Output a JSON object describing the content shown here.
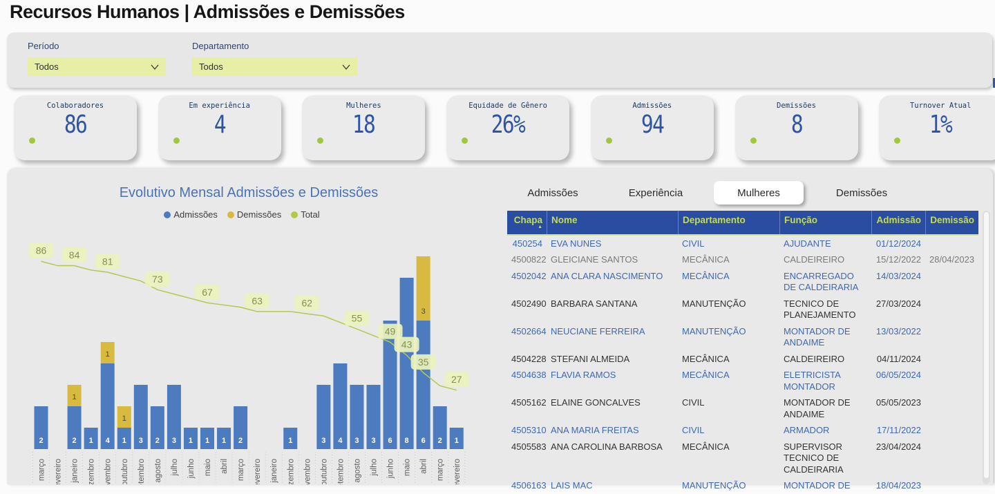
{
  "page": {
    "title": "Recursos Humanos | Admissões e Demissões"
  },
  "filters": {
    "period": {
      "label": "Período",
      "value": "Todos"
    },
    "department": {
      "label": "Departamento",
      "value": "Todos"
    }
  },
  "kpi_cards": [
    {
      "label": "Colaboradores",
      "value": "86"
    },
    {
      "label": "Em experiência",
      "value": "4"
    },
    {
      "label": "Mulheres",
      "value": "18"
    },
    {
      "label": "Equidade de Gênero",
      "value": "26%"
    },
    {
      "label": "Admissões",
      "value": "94"
    },
    {
      "label": "Demissões",
      "value": "8"
    },
    {
      "label": "Turnover Atual",
      "value": "1%"
    }
  ],
  "chart_data": {
    "type": "bar",
    "subtype": "stacked-column-with-line-dual-axis",
    "title": "Evolutivo Mensal Admissões e Demissões",
    "legend": [
      "Admissões",
      "Demissões",
      "Total"
    ],
    "legend_position": "top-center",
    "categories": [
      "março",
      "fevereiro",
      "janeiro",
      "dezembro",
      "novembro",
      "outubro",
      "setembro",
      "agosto",
      "julho",
      "junho",
      "maio",
      "abril",
      "março",
      "fevereiro",
      "janeiro",
      "dezembro",
      "novembro",
      "outubro",
      "setembro",
      "agosto",
      "julho",
      "junho",
      "maio",
      "abril",
      "março",
      "fevereiro"
    ],
    "series": [
      {
        "name": "Admissões",
        "type": "bar-stack-bottom",
        "values": [
          2,
          0,
          2,
          1,
          4,
          1,
          3,
          2,
          3,
          1,
          1,
          1,
          2,
          0,
          0,
          1,
          0,
          3,
          4,
          3,
          3,
          6,
          8,
          6,
          2,
          1
        ]
      },
      {
        "name": "Demissões",
        "type": "bar-stack-top",
        "values": [
          0,
          0,
          1,
          0,
          1,
          1,
          0,
          0,
          0,
          0,
          0,
          0,
          0,
          0,
          0,
          0,
          0,
          0,
          0,
          0,
          0,
          0,
          0,
          3,
          0,
          0
        ]
      },
      {
        "name": "Total",
        "type": "line",
        "values": [
          86,
          84,
          84,
          82,
          81,
          79,
          77,
          73,
          71,
          69,
          67,
          66,
          65,
          63,
          63,
          63,
          62,
          61,
          58,
          55,
          52,
          49,
          43,
          35,
          29,
          27
        ]
      }
    ],
    "total_line_labels": {
      "0": "86",
      "2": "84",
      "4": "81",
      "7": "73",
      "10": "67",
      "13": "63",
      "16": "62",
      "19": "55",
      "21": "49",
      "22": "43",
      "23": "35",
      "25": "27"
    },
    "bar_axis_implied_max": 9,
    "line_axis_implied_max": 90,
    "grid": "off"
  },
  "tabs": [
    {
      "label": "Admissões",
      "active": false
    },
    {
      "label": "Experiência",
      "active": false
    },
    {
      "label": "Mulheres",
      "active": true
    },
    {
      "label": "Demissões",
      "active": false
    }
  ],
  "table": {
    "columns": [
      "Chapa",
      "Nome",
      "Departamento",
      "Função",
      "Admissão",
      "Demissão"
    ],
    "sorted_column": "Chapa",
    "sort_direction": "asc",
    "rows": [
      {
        "chapa": "450254",
        "nome": "EVA NUNES",
        "departamento": "CIVIL",
        "funcao": "AJUDANTE",
        "admissao": "01/12/2024",
        "demissao": "",
        "style": "blue"
      },
      {
        "chapa": "4500822",
        "nome": "GLEICIANE SANTOS",
        "departamento": "MECÂNICA",
        "funcao": "CALDEIREIRO",
        "admissao": "15/12/2022",
        "demissao": "28/04/2023",
        "style": "gray"
      },
      {
        "chapa": "4502042",
        "nome": "ANA CLARA NASCIMENTO",
        "departamento": "MECÂNICA",
        "funcao": "ENCARREGADO DE CALDEIRARIA",
        "admissao": "14/03/2024",
        "demissao": "",
        "style": "blue"
      },
      {
        "chapa": "4502490",
        "nome": "BARBARA SANTANA",
        "departamento": "MANUTENÇÃO",
        "funcao": "TECNICO DE PLANEJAMENTO",
        "admissao": "27/03/2024",
        "demissao": "",
        "style": "dark"
      },
      {
        "chapa": "4502664",
        "nome": "NEUCIANE FERREIRA",
        "departamento": "MANUTENÇÃO",
        "funcao": "MONTADOR DE ANDAIME",
        "admissao": "13/03/2022",
        "demissao": "",
        "style": "blue"
      },
      {
        "chapa": "4504228",
        "nome": "STEFANI ALMEIDA",
        "departamento": "MECÂNICA",
        "funcao": "CALDEIREIRO",
        "admissao": "04/11/2024",
        "demissao": "",
        "style": "dark"
      },
      {
        "chapa": "4504638",
        "nome": "FLAVIA RAMOS",
        "departamento": "MECÂNICA",
        "funcao": "ELETRICISTA MONTADOR",
        "admissao": "06/05/2024",
        "demissao": "",
        "style": "blue"
      },
      {
        "chapa": "4505162",
        "nome": "ELAINE GONCALVES",
        "departamento": "CIVIL",
        "funcao": "MONTADOR DE ANDAIME",
        "admissao": "05/05/2023",
        "demissao": "",
        "style": "dark"
      },
      {
        "chapa": "4505310",
        "nome": "ANA MARIA FREITAS",
        "departamento": "CIVIL",
        "funcao": "ARMADOR",
        "admissao": "17/11/2022",
        "demissao": "",
        "style": "blue"
      },
      {
        "chapa": "4505583",
        "nome": "ANA CAROLINA BARBOSA",
        "departamento": "MECÂNICA",
        "funcao": "SUPERVISOR TECNICO DE CALDEIRARIA",
        "admissao": "23/04/2024",
        "demissao": "",
        "style": "dark"
      },
      {
        "chapa": "4506163",
        "nome": "LAIS MAC",
        "departamento": "MANUTENÇÃO",
        "funcao": "MONTADOR DE",
        "admissao": "18/04/2023",
        "demissao": "",
        "style": "blue"
      }
    ]
  },
  "colors": {
    "bar_admissoes": "#4d7bc0",
    "bar_demissoes": "#d9ba41",
    "line_total": "#b5c84c",
    "total_chip_bg": "#ebf1bd",
    "total_chip_text": "#85914c",
    "table_header_bg": "#2b4da1",
    "table_header_text": "#c4dd50",
    "row_blue": "#3f68b1",
    "row_dark": "#333333",
    "row_gray": "#7a7a7a",
    "kpi_value": "#2e55a3",
    "kpi_dot": "#a2c73b",
    "dropdown_bg": "#e7efa7"
  }
}
